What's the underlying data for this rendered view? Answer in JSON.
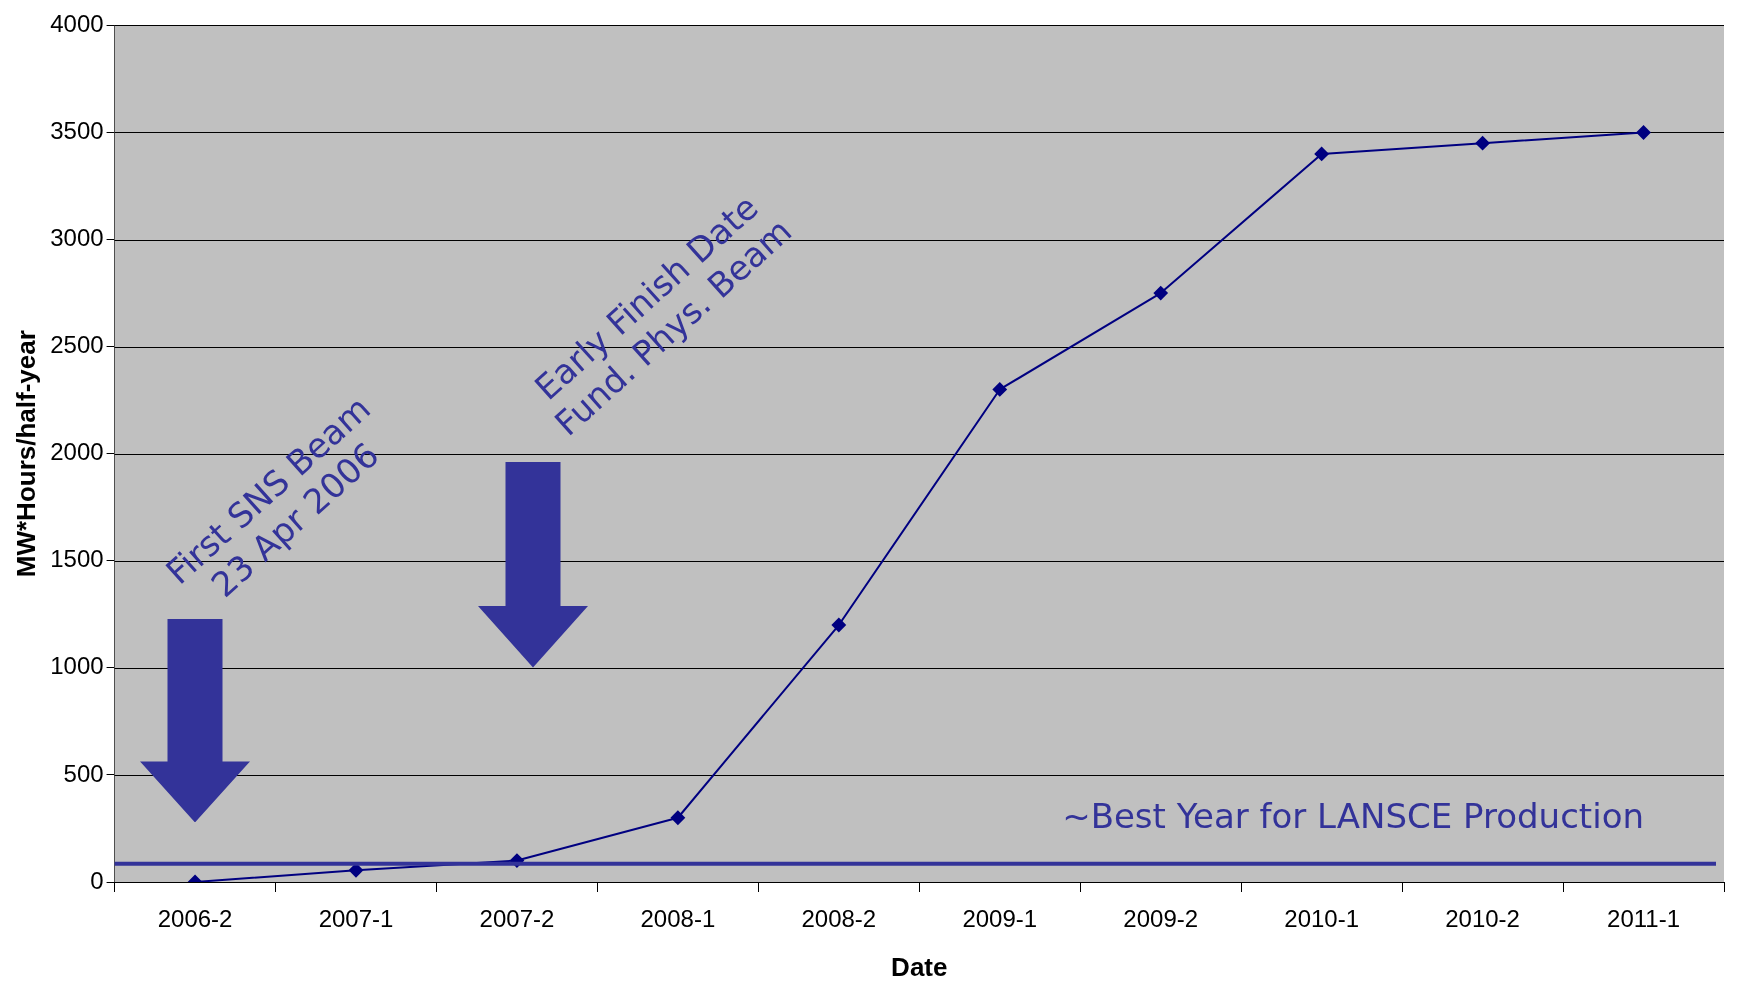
{
  "chart_data": {
    "type": "line",
    "xlabel": "Date",
    "ylabel": "MW*Hours/half-year",
    "categories": [
      "2006-2",
      "2007-1",
      "2007-2",
      "2008-1",
      "2008-2",
      "2009-1",
      "2009-2",
      "2010-1",
      "2010-2",
      "2011-1"
    ],
    "series": [
      {
        "color": "#000080",
        "values": [
          0,
          55,
          100,
          300,
          1200,
          2300,
          2750,
          3400,
          3450,
          3500
        ]
      }
    ],
    "ylim": [
      0,
      4000
    ],
    "yticks": [
      0,
      500,
      1000,
      1500,
      2000,
      2500,
      3000,
      3500,
      4000
    ],
    "grid": "y",
    "legend": false,
    "marker": "diamond",
    "line_style": "solid",
    "ref_lines": [
      {
        "axis": "y",
        "value": 85,
        "label": "~Best Year for LANSCE Production",
        "color": "#333399"
      }
    ],
    "annotations": [
      "First SNS Beam\n23 Apr 2006",
      "Early Finish Date\nFund. Phys. Beam"
    ]
  }
}
